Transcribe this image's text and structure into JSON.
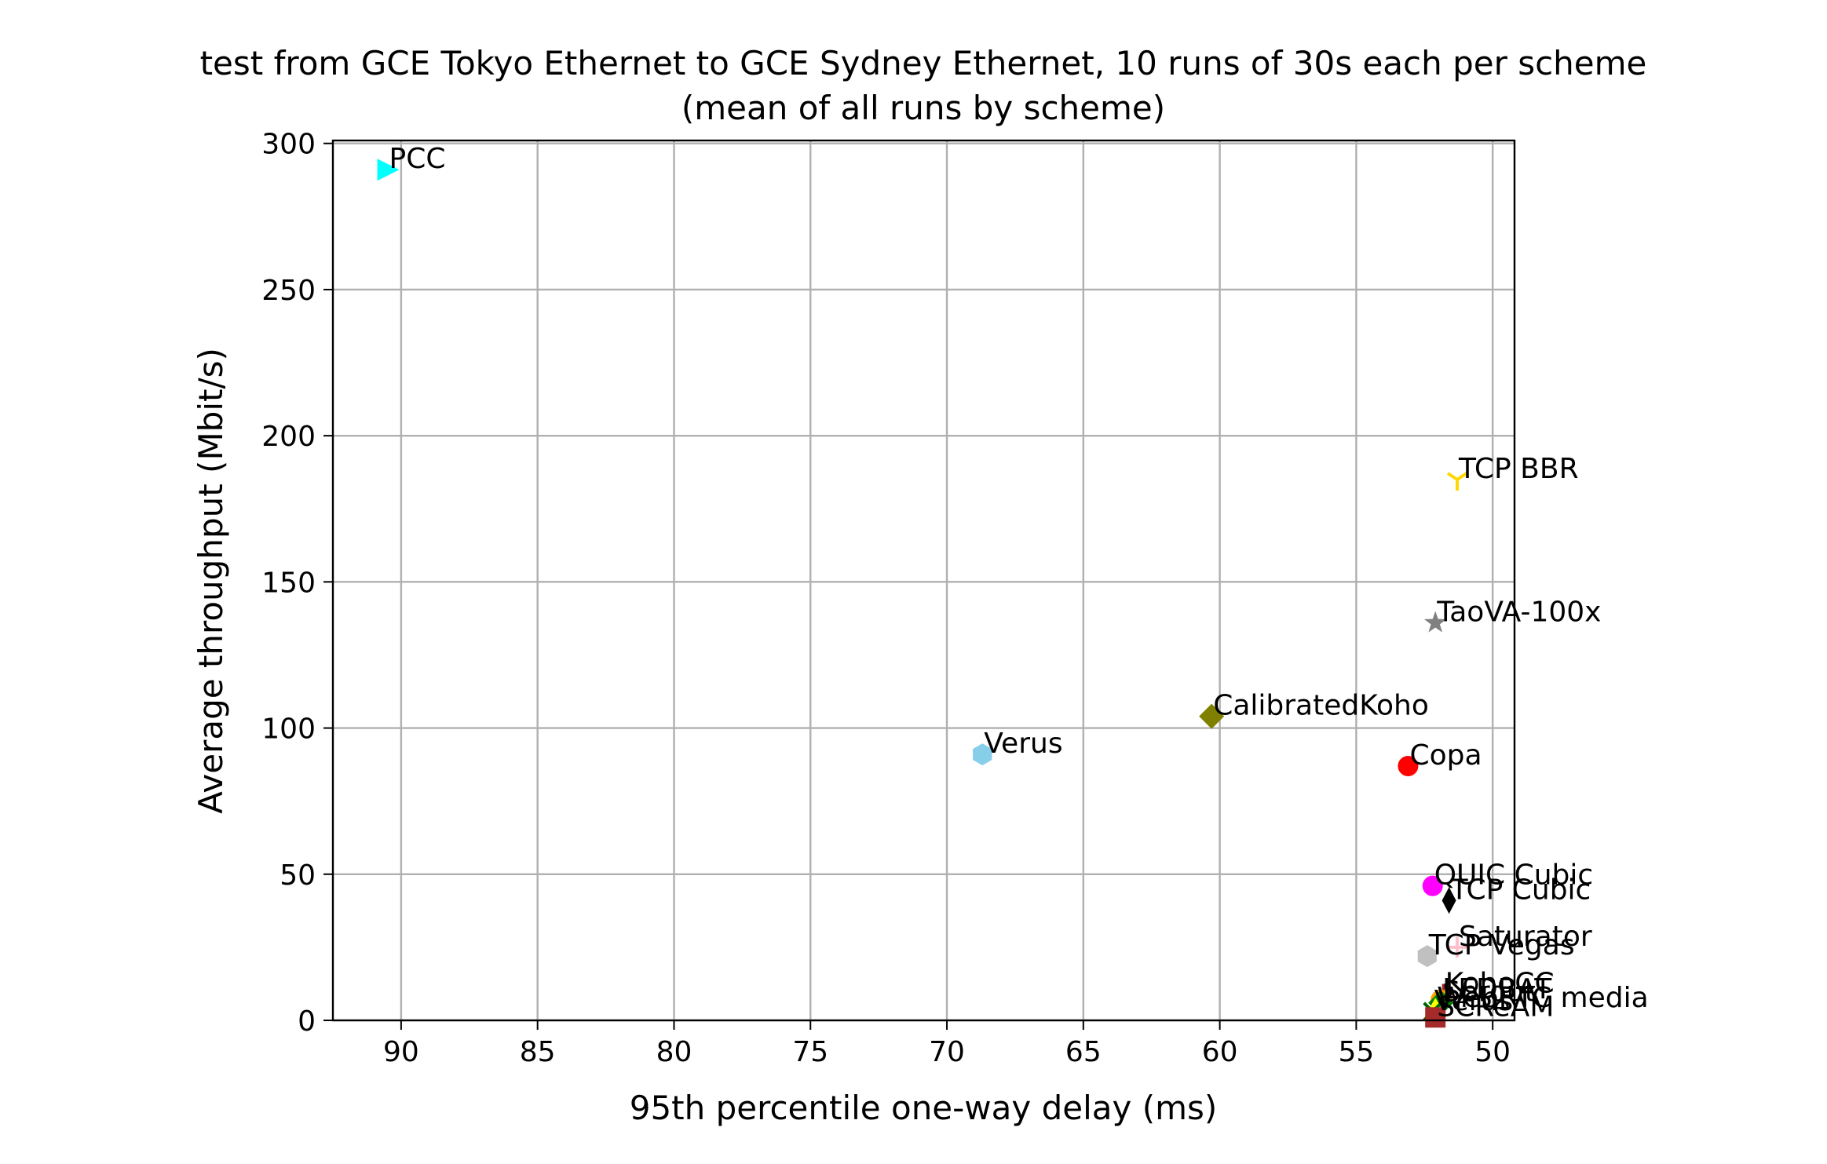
{
  "chart_data": {
    "type": "scatter",
    "title": "test from GCE Tokyo Ethernet to GCE Sydney Ethernet, 10 runs of 30s each per scheme",
    "subtitle": "(mean of all runs by scheme)",
    "xlabel": "95th percentile one-way delay (ms)",
    "ylabel": "Average throughput (Mbit/s)",
    "xlim": [
      92.5,
      49.2
    ],
    "ylim": [
      0,
      301
    ],
    "x_inverted": true,
    "grid": true,
    "legend": "none",
    "xticks": [
      "90",
      "85",
      "80",
      "75",
      "70",
      "65",
      "60",
      "55",
      "50"
    ],
    "xtick_values": [
      90,
      85,
      80,
      75,
      70,
      65,
      60,
      55,
      50
    ],
    "yticks": [
      "0",
      "50",
      "100",
      "150",
      "200",
      "250",
      "300"
    ],
    "ytick_values": [
      0,
      50,
      100,
      150,
      200,
      250,
      300
    ],
    "points": [
      {
        "label": "PCC",
        "x": 90.5,
        "y": 291,
        "color": "#00ffff",
        "marker": "triangle-right"
      },
      {
        "label": "TCP BBR",
        "x": 51.3,
        "y": 185,
        "color": "#ffd700",
        "marker": "tri-down"
      },
      {
        "label": "TaoVA-100x",
        "x": 52.1,
        "y": 136,
        "color": "#808080",
        "marker": "star"
      },
      {
        "label": "CalibratedKoho",
        "x": 60.3,
        "y": 104,
        "color": "#808000",
        "marker": "diamond"
      },
      {
        "label": "Verus",
        "x": 68.7,
        "y": 91,
        "color": "#87ceeb",
        "marker": "hexagon"
      },
      {
        "label": "Copa",
        "x": 53.1,
        "y": 87,
        "color": "#ff0000",
        "marker": "circle"
      },
      {
        "label": "QUIC Cubic",
        "x": 52.2,
        "y": 46,
        "color": "#ff00ff",
        "marker": "circle"
      },
      {
        "label": "TCP Cubic",
        "x": 51.6,
        "y": 41,
        "color": "#000000",
        "marker": "thin-diamond"
      },
      {
        "label": "Saturator",
        "x": 51.3,
        "y": 25,
        "color": "#ffc0cb",
        "marker": "plus"
      },
      {
        "label": "TCP Vegas",
        "x": 52.4,
        "y": 22,
        "color": "#c0c0c0",
        "marker": "hexagon"
      },
      {
        "label": "KohoCC",
        "x": 51.8,
        "y": 9,
        "color": "#a52a2a",
        "marker": "plus"
      },
      {
        "label": "LEDBAT",
        "x": 51.9,
        "y": 7,
        "color": "#ffa500",
        "marker": "circle"
      },
      {
        "label": "Sprout",
        "x": 51.9,
        "y": 6,
        "color": "#008000",
        "marker": "diamond"
      },
      {
        "label": "WebRTC media",
        "x": 52.1,
        "y": 4,
        "color": "#ffff00",
        "marker": "triangle-up"
      },
      {
        "label": "Verus",
        "x": 52.2,
        "y": 3,
        "color": "#006400",
        "marker": "x"
      },
      {
        "label": "SCReAM",
        "x": 52.1,
        "y": 1,
        "color": "#a52a2a",
        "marker": "square"
      }
    ]
  }
}
